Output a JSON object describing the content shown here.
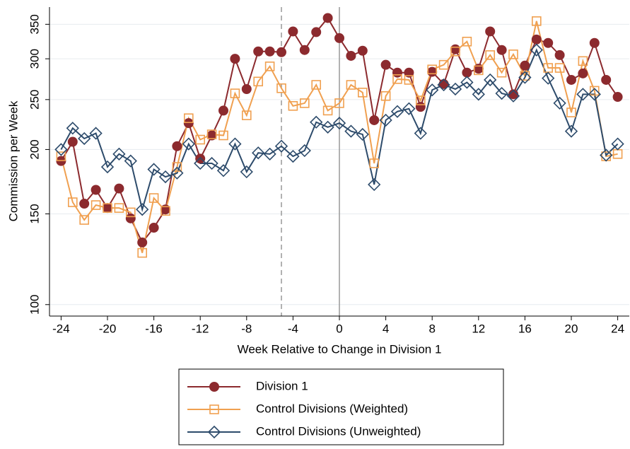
{
  "chart_data": {
    "type": "line",
    "x_label": "Week Relative to Change in Division 1",
    "y_label": "Commission per Week",
    "x": [
      -24,
      -23,
      -22,
      -21,
      -20,
      -19,
      -18,
      -17,
      -16,
      -15,
      -14,
      -13,
      -12,
      -11,
      -10,
      -9,
      -8,
      -7,
      -6,
      -5,
      -4,
      -3,
      -2,
      -1,
      0,
      1,
      2,
      3,
      4,
      5,
      6,
      7,
      8,
      9,
      10,
      11,
      12,
      13,
      14,
      15,
      16,
      17,
      18,
      19,
      20,
      21,
      22,
      23,
      24
    ],
    "series": [
      {
        "name": "Division 1",
        "color": "#8c2a2e",
        "marker": "circle",
        "values": [
          190,
          207,
          157,
          167,
          154,
          168,
          147,
          132,
          141,
          153,
          203,
          225,
          192,
          213,
          238,
          300,
          262,
          310,
          310,
          309,
          339,
          312,
          338,
          360,
          329,
          304,
          311,
          228,
          292,
          282,
          282,
          242,
          283,
          268,
          313,
          282,
          287,
          339,
          312,
          256,
          291,
          327,
          322,
          305,
          273,
          281,
          322,
          273,
          253
        ]
      },
      {
        "name": "Control Divisions (Weighted)",
        "color": "#f0a050",
        "marker": "square",
        "values": [
          194,
          158,
          146,
          156,
          154,
          154,
          151,
          126,
          161,
          152,
          185,
          230,
          209,
          214,
          213,
          257,
          233,
          271,
          290,
          263,
          243,
          246,
          267,
          238,
          246,
          267,
          258,
          188,
          254,
          274,
          273,
          249,
          286,
          292,
          310,
          324,
          285,
          305,
          282,
          306,
          278,
          355,
          288,
          288,
          236,
          297,
          260,
          194,
          196
        ]
      },
      {
        "name": "Control Divisions (Unweighted)",
        "color": "#2d4b6b",
        "marker": "diamond",
        "values": [
          200,
          220,
          210,
          215,
          185,
          196,
          190,
          153,
          183,
          177,
          180,
          205,
          188,
          188,
          182,
          205,
          181,
          197,
          196,
          203,
          194,
          199,
          226,
          221,
          225,
          217,
          214,
          171,
          228,
          237,
          240,
          215,
          261,
          267,
          262,
          270,
          256,
          273,
          257,
          254,
          276,
          312,
          275,
          246,
          217,
          256,
          256,
          195,
          205
        ]
      }
    ],
    "xlim": [
      -25,
      25
    ],
    "ylim": [
      95,
      378
    ],
    "xticks": [
      -24,
      -20,
      -16,
      -12,
      -8,
      -4,
      0,
      4,
      8,
      12,
      16,
      20,
      24
    ],
    "yticks": [
      100,
      150,
      200,
      250,
      300,
      350
    ],
    "log_y": true,
    "grid": true,
    "legend": "bottom",
    "vlines": [
      {
        "value": -5,
        "style": "dashed"
      },
      {
        "value": 0,
        "style": "solid"
      }
    ]
  }
}
